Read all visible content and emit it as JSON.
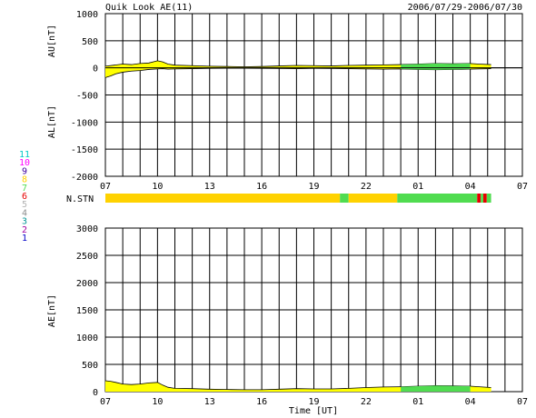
{
  "header": {
    "title": "Quik Look AE(11)",
    "date_range": "2006/07/29-2006/07/30"
  },
  "station_count_label": "N.STN",
  "station_legend": [
    {
      "label": "11",
      "color": "#00c8c8"
    },
    {
      "label": "10",
      "color": "#ff00ff"
    },
    {
      "label": "9",
      "color": "#3c00a0"
    },
    {
      "label": "8",
      "color": "#ffd200"
    },
    {
      "label": "7",
      "color": "#50dc50"
    },
    {
      "label": "6",
      "color": "#e60000"
    },
    {
      "label": "5",
      "color": "#b4b4b4"
    },
    {
      "label": "4",
      "color": "#8c8c8c"
    },
    {
      "label": "3",
      "color": "#009696"
    },
    {
      "label": "2",
      "color": "#a000a0"
    },
    {
      "label": "1",
      "color": "#0000c8"
    }
  ],
  "time_ticks": [
    "07",
    "10",
    "13",
    "16",
    "19",
    "22",
    "01",
    "04",
    "07"
  ],
  "station_timeline": [
    {
      "from": 0,
      "to": 13.5,
      "stations": 8
    },
    {
      "from": 13.5,
      "to": 14.0,
      "stations": 7
    },
    {
      "from": 14.0,
      "to": 16.8,
      "stations": 8
    },
    {
      "from": 16.8,
      "to": 21.4,
      "stations": 7
    },
    {
      "from": 21.4,
      "to": 21.6,
      "stations": 6
    },
    {
      "from": 21.6,
      "to": 21.75,
      "stations": 7
    },
    {
      "from": 21.75,
      "to": 21.95,
      "stations": 6
    },
    {
      "from": 21.95,
      "to": 22.2,
      "stations": 7
    }
  ],
  "chart_data": [
    {
      "type": "area",
      "ylabel": "AU[nT]",
      "ylabel2": "AL[nT]",
      "ylim": [
        -2000,
        1000
      ],
      "yticks": [
        1000,
        500,
        0,
        -500,
        -1000,
        -1500,
        -2000
      ],
      "xlim": [
        0,
        24
      ],
      "xtick_hours": [
        0,
        3,
        6,
        9,
        12,
        15,
        18,
        21,
        24
      ],
      "grid": true,
      "series": [
        {
          "x": [
            0,
            0.5,
            1,
            1.5,
            2,
            2.5,
            3,
            3.3,
            3.6,
            4,
            5,
            6,
            7,
            8,
            9,
            10,
            11,
            12,
            13,
            14,
            15,
            16,
            17,
            18,
            19,
            20,
            21,
            21.5,
            22.2
          ],
          "values": [
            30,
            50,
            70,
            60,
            80,
            90,
            130,
            110,
            70,
            50,
            40,
            30,
            25,
            20,
            25,
            35,
            45,
            40,
            35,
            45,
            50,
            55,
            60,
            70,
            80,
            75,
            80,
            70,
            60
          ]
        },
        {
          "x": [
            0,
            0.3,
            0.6,
            1,
            1.5,
            2,
            2.5,
            3,
            3.3,
            3.6,
            4,
            5,
            6,
            7,
            8,
            9,
            10,
            11,
            12,
            13,
            14,
            15,
            16,
            17,
            18,
            19,
            20,
            21,
            21.5,
            22.2
          ],
          "values": [
            -180,
            -150,
            -110,
            -80,
            -60,
            -50,
            -30,
            -20,
            -15,
            -25,
            -20,
            -15,
            -10,
            -8,
            -8,
            -10,
            -12,
            -15,
            -10,
            -12,
            -15,
            -20,
            -25,
            -20,
            -30,
            -35,
            -30,
            -25,
            -20,
            -15
          ]
        }
      ]
    },
    {
      "type": "area",
      "ylabel": "AE[nT]",
      "xlabel": "Time [UT]",
      "ylim": [
        0,
        3000
      ],
      "yticks": [
        3000,
        2500,
        2000,
        1500,
        1000,
        500,
        0
      ],
      "xlim": [
        0,
        24
      ],
      "xtick_hours": [
        0,
        3,
        6,
        9,
        12,
        15,
        18,
        21,
        24
      ],
      "grid": true,
      "series": [
        {
          "x": [
            0,
            0.3,
            0.6,
            1,
            1.5,
            2,
            2.5,
            3,
            3.3,
            3.6,
            4,
            5,
            6,
            7,
            8,
            9,
            10,
            11,
            12,
            13,
            14,
            15,
            16,
            17,
            18,
            19,
            20,
            21,
            21.5,
            22.2
          ],
          "values": [
            200,
            190,
            170,
            140,
            130,
            140,
            160,
            170,
            120,
            80,
            60,
            55,
            45,
            40,
            35,
            35,
            45,
            55,
            50,
            50,
            60,
            75,
            85,
            90,
            100,
            110,
            105,
            100,
            90,
            75
          ]
        }
      ]
    }
  ]
}
